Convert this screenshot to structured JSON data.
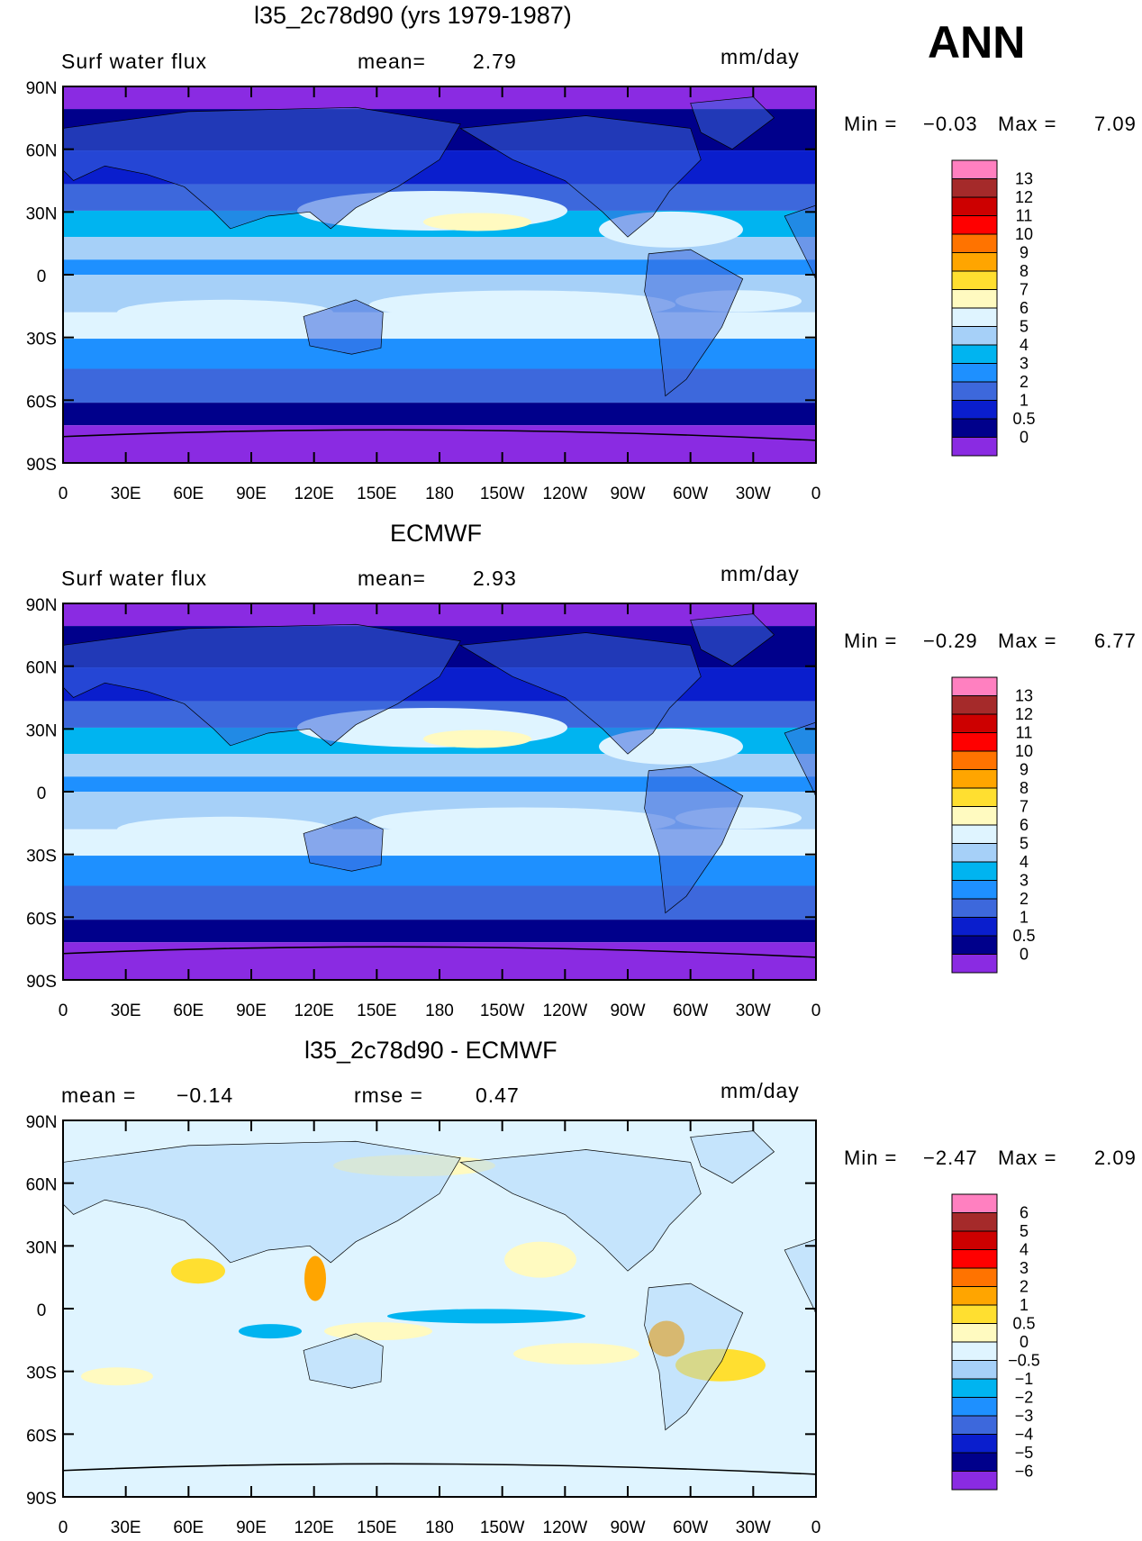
{
  "season": "ANN",
  "units": "mm/day",
  "lat_labels": [
    "90N",
    "60N",
    "30N",
    "0",
    "30S",
    "60S",
    "90S"
  ],
  "lon_labels": [
    "0",
    "30E",
    "60E",
    "90E",
    "120E",
    "150E",
    "180",
    "150W",
    "120W",
    "90W",
    "60W",
    "30W",
    "0"
  ],
  "panels": [
    {
      "title": "l35_2c78d90 (yrs 1979-1987)",
      "left_label": "Surf water flux",
      "stat1_label": "mean=",
      "stat1_value": "2.79",
      "min_label": "Min =",
      "min_value": "−0.03",
      "max_label": "Max =",
      "max_value": "7.09",
      "colorbar_labels": [
        "13",
        "12",
        "11",
        "10",
        "9",
        "8",
        "7",
        "6",
        "5",
        "4",
        "3",
        "2",
        "1",
        "0.5",
        "0"
      ]
    },
    {
      "title": "ECMWF",
      "left_label": "Surf water flux",
      "stat1_label": "mean=",
      "stat1_value": "2.93",
      "min_label": "Min =",
      "min_value": "−0.29",
      "max_label": "Max =",
      "max_value": "6.77",
      "colorbar_labels": [
        "13",
        "12",
        "11",
        "10",
        "9",
        "8",
        "7",
        "6",
        "5",
        "4",
        "3",
        "2",
        "1",
        "0.5",
        "0"
      ]
    },
    {
      "title": "l35_2c78d90 - ECMWF",
      "left_label": "mean =",
      "left_value": "−0.14",
      "stat1_label": "rmse =",
      "stat1_value": "0.47",
      "min_label": "Min =",
      "min_value": "−2.47",
      "max_label": "Max =",
      "max_value": "2.09",
      "colorbar_labels": [
        "6",
        "5",
        "4",
        "3",
        "2",
        "1",
        "0.5",
        "0",
        "−0.5",
        "−1",
        "−2",
        "−3",
        "−4",
        "−5",
        "−6"
      ]
    }
  ],
  "colors": {
    "abs_scale": [
      "#ff80c0",
      "#a52a2a",
      "#cd0000",
      "#ff0000",
      "#ff7300",
      "#ffa500",
      "#ffdf30",
      "#fffac0",
      "#dff4ff",
      "#a6d0f8",
      "#00b4f0",
      "#1e90ff",
      "#3d68dc",
      "#0a1ecd",
      "#00008b",
      "#8a2be2"
    ],
    "diff_scale": [
      "#ff80c0",
      "#a52a2a",
      "#cd0000",
      "#ff0000",
      "#ff7300",
      "#ffa500",
      "#ffdf30",
      "#fffac0",
      "#dff4ff",
      "#a6d0f8",
      "#00b4f0",
      "#1e90ff",
      "#3d68dc",
      "#0a1ecd",
      "#00008b",
      "#8a2be2"
    ]
  }
}
